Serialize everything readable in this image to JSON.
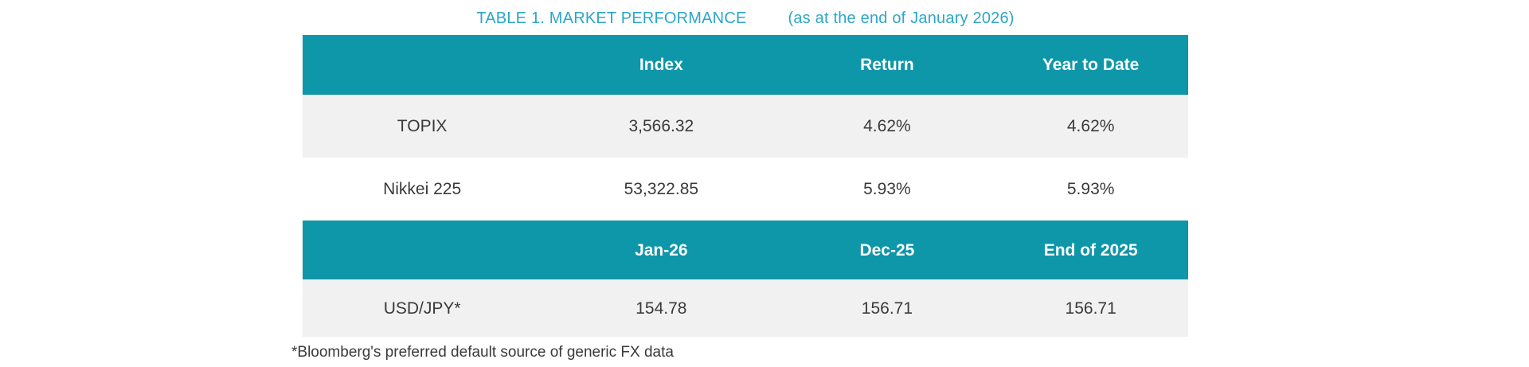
{
  "title": {
    "main": "TABLE 1. MARKET PERFORMANCE",
    "subtitle": "(as at the end of January 2026)"
  },
  "colors": {
    "header_bg": "#0E96A9",
    "title_text": "#2BA7C9",
    "alt_row_bg": "#F1F1F1",
    "cell_text": "#3A3A39",
    "header_text": "#FFFFFF"
  },
  "chart_data": {
    "type": "table",
    "title": "TABLE 1. MARKET PERFORMANCE (as at the end of January 2026)",
    "sections": [
      {
        "headers": [
          "",
          "Index",
          "Return",
          "Year to Date"
        ],
        "rows": [
          [
            "TOPIX",
            "3,566.32",
            "4.62%",
            "4.62%"
          ],
          [
            "Nikkei 225",
            "53,322.85",
            "5.93%",
            "5.93%"
          ]
        ]
      },
      {
        "headers": [
          "",
          "Jan-26",
          "Dec-25",
          "End of 2025"
        ],
        "rows": [
          [
            "USD/JPY*",
            "154.78",
            "156.71",
            "156.71"
          ]
        ]
      }
    ]
  },
  "table1": {
    "headers": {
      "blank": "",
      "index": "Index",
      "return": "Return",
      "ytd": "Year to Date"
    },
    "rows": [
      {
        "label": "TOPIX",
        "values": [
          "3,566.32",
          "4.62%",
          "4.62%"
        ]
      },
      {
        "label": "Nikkei 225",
        "values": [
          "53,322.85",
          "5.93%",
          "5.93%"
        ]
      }
    ]
  },
  "table2": {
    "headers": {
      "blank": "",
      "jan": "Jan-26",
      "dec": "Dec-25",
      "eoy": "End of 2025"
    },
    "rows": [
      {
        "label": "USD/JPY*",
        "values": [
          "154.78",
          "156.71",
          "156.71"
        ]
      }
    ]
  },
  "footnote": "*Bloomberg's preferred default source of generic FX data"
}
